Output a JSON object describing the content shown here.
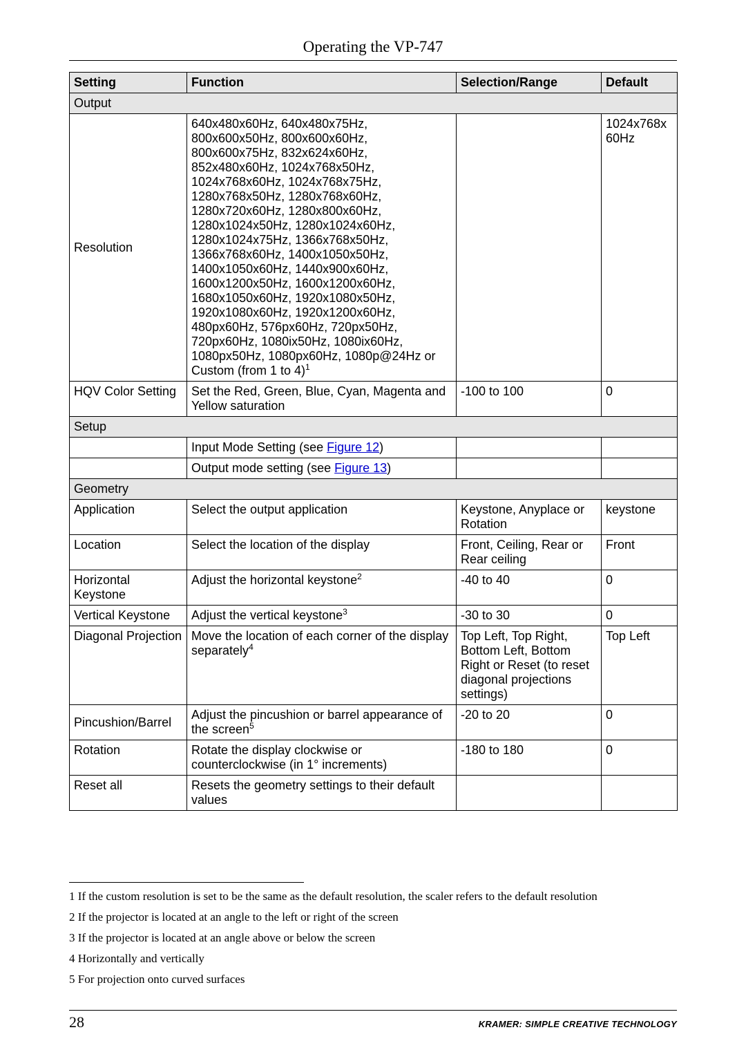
{
  "title": "Operating the VP-747",
  "headers": {
    "c1": "Setting",
    "c2": "Function",
    "c3": "Selection/Range",
    "c4": "Default"
  },
  "sections": {
    "output": "Output",
    "setup": "Setup",
    "geometry": "Geometry"
  },
  "rows": {
    "resolution": {
      "setting": "Resolution",
      "func_pre": "640x480x60Hz, 640x480x75Hz, 800x600x50Hz, 800x600x60Hz, 800x600x75Hz, 832x624x60Hz, 852x480x60Hz, 1024x768x50Hz, 1024x768x60Hz, 1024x768x75Hz, 1280x768x50Hz, 1280x768x60Hz, 1280x720x60Hz, 1280x800x60Hz, 1280x1024x50Hz, 1280x1024x60Hz, 1280x1024x75Hz, 1366x768x50Hz, 1366x768x60Hz, 1400x1050x50Hz, 1400x1050x60Hz, 1440x900x60Hz, 1600x1200x50Hz, 1600x1200x60Hz, 1680x1050x60Hz, 1920x1080x50Hz, 1920x1080x60Hz, 1920x1200x60Hz, 480px60Hz, 576px60Hz, 720px50Hz, 720px60Hz, 1080ix50Hz, 1080ix60Hz, 1080px50Hz, 1080px60Hz, 1080p@24Hz or Custom (from 1 to 4)",
      "fn": "1",
      "range": "",
      "default": "1024x768x 60Hz"
    },
    "hqv": {
      "setting": "HQV Color Setting",
      "func": "Set the Red, Green, Blue, Cyan, Magenta and Yellow saturation",
      "range": "-100 to 100",
      "default": "0"
    },
    "input_mode": {
      "func_pre": "Input Mode Setting (see ",
      "link": "Figure 12",
      "func_post": ")"
    },
    "output_mode": {
      "func_pre": "Output mode setting (see ",
      "link": "Figure 13",
      "func_post": ")"
    },
    "application": {
      "setting": "Application",
      "func": "Select the output application",
      "range": "Keystone, Anyplace or Rotation",
      "default": "keystone"
    },
    "location": {
      "setting": "Location",
      "func": "Select the location of the display",
      "range": "Front, Ceiling, Rear or Rear ceiling",
      "default": "Front"
    },
    "hkey": {
      "setting": "Horizontal Keystone",
      "func_pre": "Adjust the horizontal keystone",
      "fn": "2",
      "range": "-40 to 40",
      "default": "0"
    },
    "vkey": {
      "setting": "Vertical Keystone",
      "func_pre": "Adjust the vertical keystone",
      "fn": "3",
      "range": "-30 to 30",
      "default": "0"
    },
    "diag": {
      "setting": "Diagonal Projection",
      "func_pre": "Move the location of each corner of the display separately",
      "fn": "4",
      "range": "Top Left, Top Right, Bottom Left, Bottom Right or Reset (to reset diagonal projections settings)",
      "default": "Top Left"
    },
    "pin": {
      "setting": "Pincushion/Barrel",
      "func_pre": "Adjust the pincushion or barrel appearance of the screen",
      "fn": "5",
      "range": "-20 to 20",
      "default": "0"
    },
    "rot": {
      "setting": "Rotation",
      "func": "Rotate the display clockwise or counterclockwise (in 1° increments)",
      "range": "-180 to 180",
      "default": "0"
    },
    "reset": {
      "setting": "Reset all",
      "func": "Resets the geometry settings to their default values",
      "range": "",
      "default": ""
    }
  },
  "footnotes": {
    "f1": "1 If the custom resolution is set to be the same as the default resolution, the scaler refers to the default resolution",
    "f2": "2 If the projector is located at an angle to the left or right of the screen",
    "f3": "3 If the projector is located at an angle above or below the screen",
    "f4": "4 Horizontally and vertically",
    "f5": "5 For projection onto curved surfaces"
  },
  "footer": {
    "page": "28",
    "brand": "KRAMER:  SIMPLE CREATIVE TECHNOLOGY"
  }
}
